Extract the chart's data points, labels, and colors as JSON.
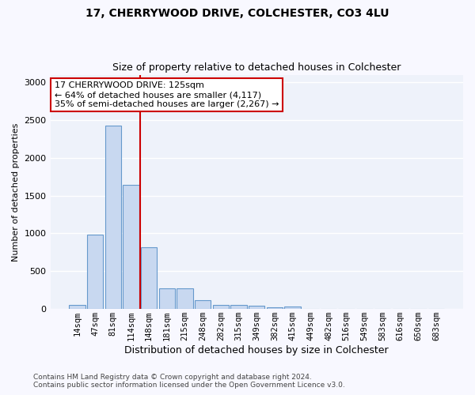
{
  "title1": "17, CHERRYWOOD DRIVE, COLCHESTER, CO3 4LU",
  "title2": "Size of property relative to detached houses in Colchester",
  "xlabel": "Distribution of detached houses by size in Colchester",
  "ylabel": "Number of detached properties",
  "categories": [
    "14sqm",
    "47sqm",
    "81sqm",
    "114sqm",
    "148sqm",
    "181sqm",
    "215sqm",
    "248sqm",
    "282sqm",
    "315sqm",
    "349sqm",
    "382sqm",
    "415sqm",
    "449sqm",
    "482sqm",
    "516sqm",
    "549sqm",
    "583sqm",
    "616sqm",
    "650sqm",
    "683sqm"
  ],
  "values": [
    55,
    980,
    2430,
    1640,
    820,
    275,
    270,
    120,
    55,
    50,
    40,
    25,
    30,
    0,
    0,
    0,
    0,
    0,
    0,
    0,
    0
  ],
  "bar_color": "#c8d8f0",
  "bar_edge_color": "#6699cc",
  "bar_edge_width": 0.8,
  "vline_x": 3.5,
  "vline_color": "#cc0000",
  "annotation_line1": "17 CHERRYWOOD DRIVE: 125sqm",
  "annotation_line2": "← 64% of detached houses are smaller (4,117)",
  "annotation_line3": "35% of semi-detached houses are larger (2,267) →",
  "ylim": [
    0,
    3100
  ],
  "yticks": [
    0,
    500,
    1000,
    1500,
    2000,
    2500,
    3000
  ],
  "footer1": "Contains HM Land Registry data © Crown copyright and database right 2024.",
  "footer2": "Contains public sector information licensed under the Open Government Licence v3.0.",
  "bg_color": "#eef2fa",
  "grid_color": "#ffffff",
  "fig_bg_color": "#f8f8ff",
  "title1_fontsize": 10,
  "title2_fontsize": 9,
  "xlabel_fontsize": 9,
  "ylabel_fontsize": 8,
  "annotation_fontsize": 8,
  "tick_fontsize": 7.5,
  "footer_fontsize": 6.5
}
